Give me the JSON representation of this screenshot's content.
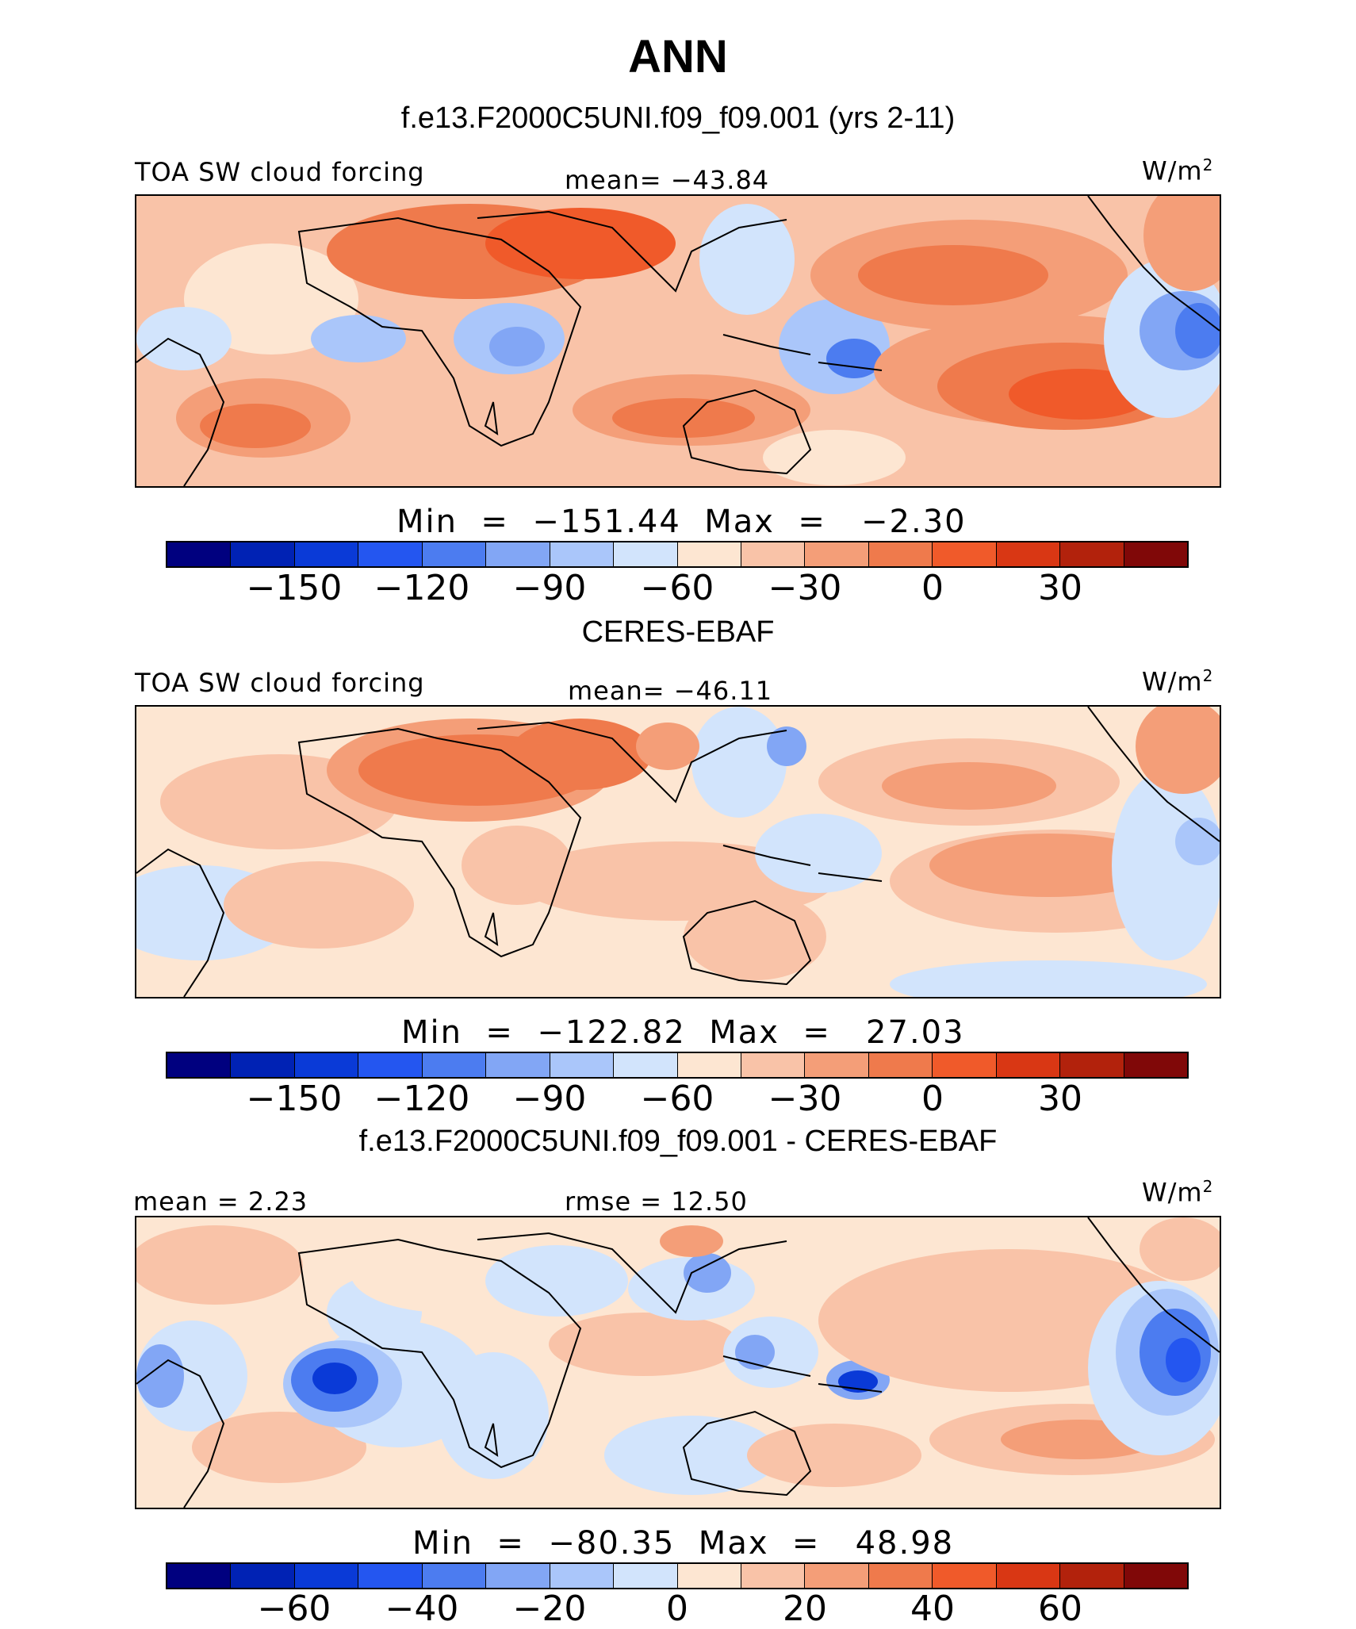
{
  "title": "ANN",
  "colors": [
    "#00007f",
    "#0022b4",
    "#0a3ad7",
    "#2456f0",
    "#4c7cf0",
    "#82a6f5",
    "#aac6fa",
    "#d2e4fc",
    "#fde6d2",
    "#f9c3a8",
    "#f49e78",
    "#ef7a4c",
    "#f05a2a",
    "#d93714",
    "#b2220c",
    "#800808"
  ],
  "panels": [
    {
      "heading": "f.e13.F2000C5UNI.f09_f09.001 (yrs 2-11)",
      "left_label": "TOA SW cloud forcing",
      "center_label": "mean= −43.84",
      "units": "W/m",
      "units_sup": "2",
      "minmax": "Min  =  −151.44  Max  =   −2.30",
      "ticks": [
        "−150",
        "−120",
        "−90",
        "−60",
        "−30",
        "0",
        "30"
      ]
    },
    {
      "heading": "CERES-EBAF",
      "left_label": "TOA SW cloud forcing",
      "center_label": "mean= −46.11",
      "units": "W/m",
      "units_sup": "2",
      "minmax": "Min  =  −122.82  Max  =   27.03",
      "ticks": [
        "−150",
        "−120",
        "−90",
        "−60",
        "−30",
        "0",
        "30"
      ]
    },
    {
      "heading": "f.e13.F2000C5UNI.f09_f09.001 - CERES-EBAF",
      "left_label": "mean  =    2.23",
      "center_label": "rmse  =   12.50",
      "units": "W/m",
      "units_sup": "2",
      "minmax": "Min  =  −80.35  Max  =   48.98",
      "ticks": [
        "−60",
        "−40",
        "−20",
        "0",
        "20",
        "40",
        "60"
      ]
    }
  ],
  "chart_data": [
    {
      "type": "heatmap",
      "title": "f.e13.F2000C5UNI.f09_f09.001 (yrs 2-11)",
      "variable": "TOA SW cloud forcing",
      "units": "W/m2",
      "mean": -43.84,
      "min": -151.44,
      "max": -2.3,
      "contour_levels": [
        -165,
        -150,
        -135,
        -120,
        -105,
        -90,
        -75,
        -60,
        -45,
        -30,
        -15,
        0,
        15,
        30,
        45
      ],
      "colorbar_ticks": [
        -150,
        -120,
        -90,
        -60,
        -30,
        0,
        30
      ]
    },
    {
      "type": "heatmap",
      "title": "CERES-EBAF",
      "variable": "TOA SW cloud forcing",
      "units": "W/m2",
      "mean": -46.11,
      "min": -122.82,
      "max": 27.03,
      "contour_levels": [
        -165,
        -150,
        -135,
        -120,
        -105,
        -90,
        -75,
        -60,
        -45,
        -30,
        -15,
        0,
        15,
        30,
        45
      ],
      "colorbar_ticks": [
        -150,
        -120,
        -90,
        -60,
        -30,
        0,
        30
      ]
    },
    {
      "type": "heatmap",
      "title": "f.e13.F2000C5UNI.f09_f09.001 - CERES-EBAF",
      "units": "W/m2",
      "mean": 2.23,
      "rmse": 12.5,
      "min": -80.35,
      "max": 48.98,
      "contour_levels": [
        -70,
        -60,
        -50,
        -40,
        -30,
        -20,
        -10,
        0,
        10,
        20,
        30,
        40,
        50,
        60,
        70
      ],
      "colorbar_ticks": [
        -60,
        -40,
        -20,
        0,
        20,
        40,
        60
      ]
    }
  ]
}
